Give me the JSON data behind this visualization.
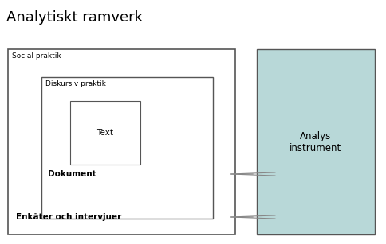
{
  "title": "Analytiskt ramverk",
  "title_fontsize": 13,
  "bg_color": "#ffffff",
  "border_color": "#555555",
  "analys_box_color": "#b8d8d8",
  "analys_box_label": "Analys\ninstrument",
  "social_label": "Social praktik",
  "diskursiv_label": "Diskursiv praktik",
  "text_label": "Text",
  "dokument_label": "Dokument",
  "enkater_label": "Enkäter och intervjuer",
  "arrow_color": "#888888",
  "label_fontsize": 6.5,
  "content_fontsize": 7.5,
  "analys_fontsize": 8.5
}
